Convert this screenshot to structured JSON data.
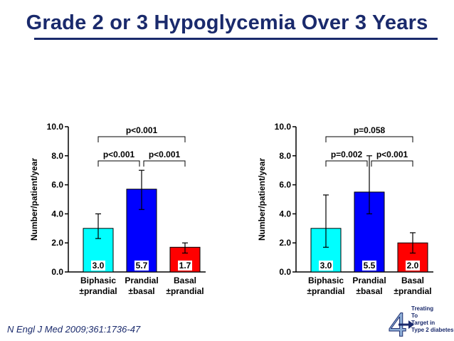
{
  "slide": {
    "title": "Grade 2 or 3 Hypoglycemia Over 3 Years",
    "citation": "N Engl J Med 2009;361:1736-47",
    "logo_lines": [
      "Treating",
      "To",
      "Target in",
      "Type 2 diabetes"
    ],
    "logo_numeral": "4",
    "title_color": "#1a2a6c"
  },
  "chart_data": [
    {
      "type": "bar",
      "categories": [
        [
          "Biphasic",
          "±prandial"
        ],
        [
          "Prandial",
          "±basal"
        ],
        [
          "Basal",
          "±prandial"
        ]
      ],
      "values": [
        3.0,
        5.7,
        1.7
      ],
      "value_labels": [
        "3.0",
        "5.7",
        "1.7"
      ],
      "error": [
        [
          2.3,
          4.0
        ],
        [
          4.3,
          7.0
        ],
        [
          1.3,
          2.0
        ]
      ],
      "colors": [
        "#00ffff",
        "#0000ff",
        "#ff0000"
      ],
      "ylabel": "Number/patient/year",
      "ylim": [
        0,
        10
      ],
      "yticks": [
        0,
        2,
        4,
        6,
        8,
        10
      ],
      "yticklabels": [
        "0.0",
        "2.0",
        "4.0",
        "6.0",
        "8.0",
        "10.0"
      ],
      "grid": false,
      "brackets": [
        {
          "from": 0,
          "to": 2,
          "label": "p<0.001",
          "level": 2
        },
        {
          "from": 0,
          "to": 1,
          "label": "p<0.001",
          "level": 1
        },
        {
          "from": 1,
          "to": 2,
          "label": "p<0.001",
          "level": 1
        }
      ]
    },
    {
      "type": "bar",
      "categories": [
        [
          "Biphasic",
          "±prandial"
        ],
        [
          "Prandial",
          "±basal"
        ],
        [
          "Basal",
          "±prandial"
        ]
      ],
      "values": [
        3.0,
        5.5,
        2.0
      ],
      "value_labels": [
        "3.0",
        "5.5",
        "2.0"
      ],
      "error": [
        [
          1.7,
          5.3
        ],
        [
          4.0,
          8.0
        ],
        [
          1.3,
          2.7
        ]
      ],
      "colors": [
        "#00ffff",
        "#0000ff",
        "#ff0000"
      ],
      "ylabel": "Number/patient/year",
      "ylim": [
        0,
        10
      ],
      "yticks": [
        0,
        2,
        4,
        6,
        8,
        10
      ],
      "yticklabels": [
        "0.0",
        "2.0",
        "4.0",
        "6.0",
        "8.0",
        "10.0"
      ],
      "grid": false,
      "brackets": [
        {
          "from": 0,
          "to": 2,
          "label": "p=0.058",
          "level": 2
        },
        {
          "from": 0,
          "to": 1,
          "label": "p=0.002",
          "level": 1
        },
        {
          "from": 1,
          "to": 2,
          "label": "p<0.001",
          "level": 1
        }
      ]
    }
  ]
}
